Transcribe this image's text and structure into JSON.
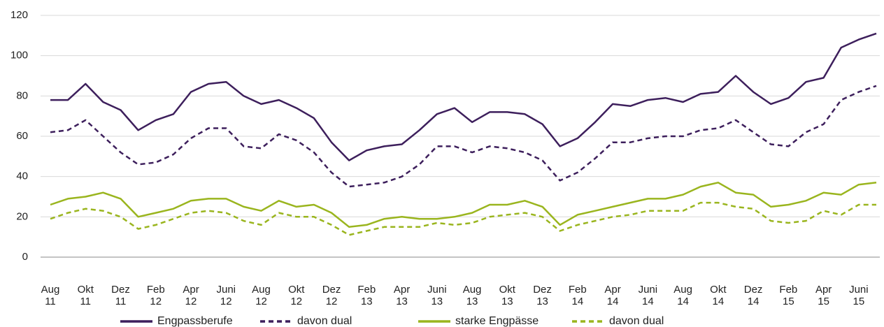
{
  "chart_data": {
    "type": "line",
    "categories": [
      "Aug 11",
      null,
      "Okt 11",
      null,
      "Dez 11",
      null,
      "Feb 12",
      null,
      "Apr 12",
      null,
      "Juni 12",
      null,
      "Aug 12",
      null,
      "Okt 12",
      null,
      "Dez 12",
      null,
      "Feb 13",
      null,
      "Apr 13",
      null,
      "Juni 13",
      null,
      "Aug 13",
      null,
      "Okt 13",
      null,
      "Dez 13",
      null,
      "Feb 14",
      null,
      "Apr 14",
      null,
      "Juni 14",
      null,
      "Aug 14",
      null,
      "Okt 14",
      null,
      "Dez 14",
      null,
      "Feb 15",
      null,
      "Apr 15",
      null,
      "Juni 15",
      null
    ],
    "series": [
      {
        "name": "Engpassberufe",
        "color": "#3d1f5c",
        "dashed": false,
        "values": [
          78,
          78,
          86,
          77,
          73,
          63,
          68,
          71,
          82,
          86,
          87,
          80,
          76,
          78,
          74,
          69,
          57,
          48,
          53,
          55,
          56,
          63,
          71,
          74,
          67,
          72,
          72,
          71,
          66,
          55,
          59,
          67,
          76,
          75,
          78,
          79,
          77,
          81,
          82,
          90,
          82,
          76,
          79,
          87,
          89,
          104,
          108,
          111
        ]
      },
      {
        "name": "davon dual",
        "color": "#3d1f5c",
        "dashed": true,
        "values": [
          62,
          63,
          68,
          60,
          52,
          46,
          47,
          51,
          59,
          64,
          64,
          55,
          54,
          61,
          58,
          52,
          42,
          35,
          36,
          37,
          40,
          46,
          55,
          55,
          52,
          55,
          54,
          52,
          48,
          38,
          42,
          49,
          57,
          57,
          59,
          60,
          60,
          63,
          64,
          68,
          62,
          56,
          55,
          62,
          66,
          78,
          82,
          85
        ]
      },
      {
        "name": "starke Engpässe",
        "color": "#9ab51e",
        "dashed": false,
        "values": [
          26,
          29,
          30,
          32,
          29,
          20,
          22,
          24,
          28,
          29,
          29,
          25,
          23,
          28,
          25,
          26,
          22,
          15,
          16,
          19,
          20,
          19,
          19,
          20,
          22,
          26,
          26,
          28,
          25,
          16,
          21,
          23,
          25,
          27,
          29,
          29,
          31,
          35,
          37,
          32,
          31,
          25,
          26,
          28,
          32,
          31,
          36,
          37
        ]
      },
      {
        "name": "davon dual",
        "color": "#9ab51e",
        "dashed": true,
        "values": [
          19,
          22,
          24,
          23,
          20,
          14,
          16,
          19,
          22,
          23,
          22,
          18,
          16,
          22,
          20,
          20,
          16,
          11,
          13,
          15,
          15,
          15,
          17,
          16,
          17,
          20,
          21,
          22,
          20,
          13,
          16,
          18,
          20,
          21,
          23,
          23,
          23,
          27,
          27,
          25,
          24,
          18,
          17,
          18,
          23,
          21,
          26,
          26
        ]
      }
    ],
    "ylim": [
      0,
      120
    ],
    "yticks": [
      0,
      20,
      40,
      60,
      80,
      100,
      120
    ],
    "grid": true
  }
}
